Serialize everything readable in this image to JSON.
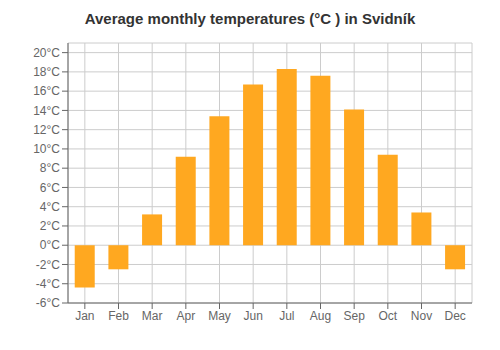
{
  "chart_data": {
    "type": "bar",
    "title": "Average monthly temperatures (°C ) in Svidník",
    "categories": [
      "Jan",
      "Feb",
      "Mar",
      "Apr",
      "May",
      "Jun",
      "Jul",
      "Aug",
      "Sep",
      "Oct",
      "Nov",
      "Dec"
    ],
    "values": [
      -4.4,
      -2.5,
      3.2,
      9.2,
      13.4,
      16.7,
      18.3,
      17.6,
      14.1,
      9.4,
      3.4,
      -2.5
    ],
    "color": "#FFA820",
    "ylim": [
      -6,
      21
    ],
    "yticks": [
      {
        "value": -6,
        "label": "-6°C"
      },
      {
        "value": -4,
        "label": "-4°C"
      },
      {
        "value": -2,
        "label": "-2°C"
      },
      {
        "value": 0,
        "label": "0°C"
      },
      {
        "value": 2,
        "label": "2°C"
      },
      {
        "value": 4,
        "label": "4°C"
      },
      {
        "value": 6,
        "label": "6°C"
      },
      {
        "value": 8,
        "label": "8°C"
      },
      {
        "value": 10,
        "label": "10°C"
      },
      {
        "value": 12,
        "label": "12°C"
      },
      {
        "value": 14,
        "label": "14°C"
      },
      {
        "value": 16,
        "label": "16°C"
      },
      {
        "value": 18,
        "label": "18°C"
      },
      {
        "value": 20,
        "label": "20°C"
      }
    ],
    "grid": true
  }
}
